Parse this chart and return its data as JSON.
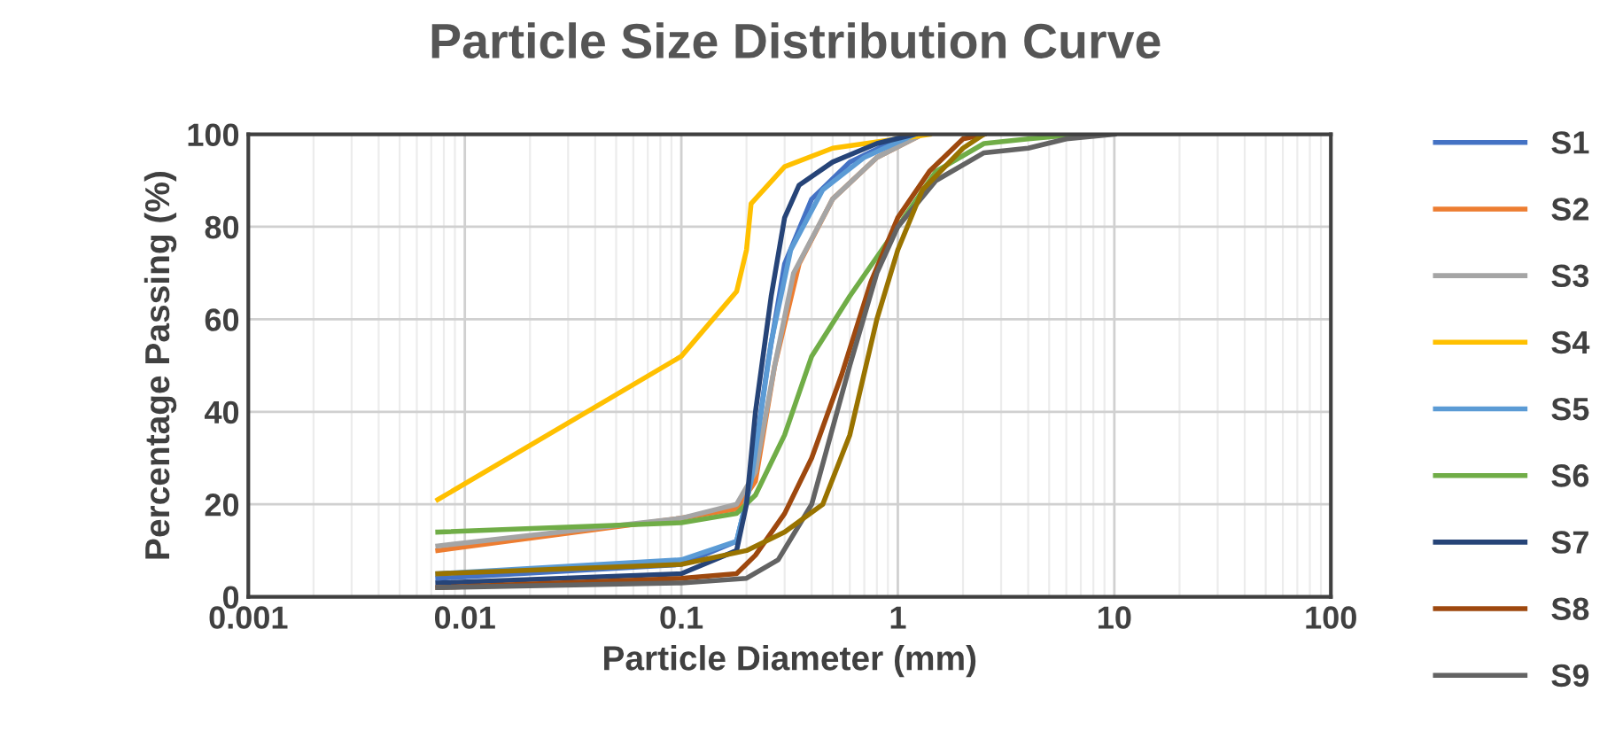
{
  "chart_data": {
    "type": "line",
    "title": "Particle Size Distribution Curve",
    "xlabel": "Particle Diameter (mm)",
    "ylabel": "Percentage Passing (%)",
    "log": "x",
    "xlim": [
      0.001,
      100
    ],
    "xticks": [
      0.001,
      0.01,
      0.1,
      1,
      10,
      100
    ],
    "ylim": [
      0,
      100
    ],
    "yticks": [
      0,
      20,
      40,
      60,
      80,
      100
    ],
    "grid": true,
    "legend": "right",
    "marker": "none",
    "line_style": "solid",
    "series": [
      {
        "name": "S1",
        "color": "#4472c4",
        "x": [
          0.0075,
          0.1,
          0.18,
          0.21,
          0.25,
          0.3,
          0.4,
          0.6,
          1,
          1.3
        ],
        "values": [
          4,
          7,
          12,
          25,
          50,
          72,
          86,
          94,
          99,
          100
        ]
      },
      {
        "name": "S2",
        "color": "#ed7d31",
        "x": [
          0.0075,
          0.1,
          0.18,
          0.22,
          0.27,
          0.35,
          0.5,
          0.8,
          1.3
        ],
        "values": [
          10,
          17,
          19,
          25,
          50,
          72,
          86,
          95,
          100
        ]
      },
      {
        "name": "S3",
        "color": "#a5a5a5",
        "x": [
          0.0075,
          0.1,
          0.18,
          0.22,
          0.27,
          0.33,
          0.5,
          0.8,
          1.3
        ],
        "values": [
          11,
          17,
          20,
          27,
          50,
          70,
          86,
          95,
          100
        ]
      },
      {
        "name": "S4",
        "color": "#ffc000",
        "x": [
          0.0075,
          0.1,
          0.18,
          0.2,
          0.21,
          0.3,
          0.5,
          1,
          1.4
        ],
        "values": [
          21,
          52,
          66,
          75,
          85,
          93,
          97,
          99,
          100
        ]
      },
      {
        "name": "S5",
        "color": "#5b9bd5",
        "x": [
          0.0075,
          0.1,
          0.18,
          0.21,
          0.26,
          0.32,
          0.45,
          0.7,
          1.2
        ],
        "values": [
          5,
          8,
          12,
          25,
          55,
          75,
          88,
          95,
          100
        ]
      },
      {
        "name": "S6",
        "color": "#70ad47",
        "x": [
          0.0075,
          0.1,
          0.18,
          0.22,
          0.3,
          0.4,
          0.6,
          1,
          1.5,
          2.5,
          4,
          7
        ],
        "values": [
          14,
          16,
          18,
          22,
          35,
          52,
          65,
          80,
          92,
          98,
          99,
          100
        ]
      },
      {
        "name": "S7",
        "color": "#264478",
        "x": [
          0.0075,
          0.1,
          0.18,
          0.2,
          0.22,
          0.26,
          0.3,
          0.35,
          0.5,
          0.8,
          1.2
        ],
        "values": [
          3,
          5,
          10,
          20,
          40,
          65,
          82,
          89,
          94,
          98,
          100
        ]
      },
      {
        "name": "S8",
        "color": "#9e480e",
        "x": [
          0.0075,
          0.1,
          0.18,
          0.22,
          0.3,
          0.4,
          0.55,
          0.75,
          1,
          1.4,
          2,
          2.5
        ],
        "values": [
          2,
          4,
          5,
          9,
          18,
          30,
          48,
          68,
          82,
          92,
          99,
          100
        ]
      },
      {
        "name": "S9",
        "color": "#636363",
        "x": [
          0.0075,
          0.1,
          0.2,
          0.28,
          0.4,
          0.6,
          0.8,
          1,
          1.5,
          2.5,
          4,
          6,
          10
        ],
        "values": [
          2,
          3,
          4,
          8,
          20,
          50,
          70,
          80,
          90,
          96,
          97,
          99,
          100
        ]
      },
      {
        "color": "#997300",
        "x": [
          0.0075,
          0.1,
          0.2,
          0.3,
          0.45,
          0.6,
          0.8,
          1,
          1.3,
          2,
          2.5
        ],
        "values": [
          5,
          7,
          10,
          14,
          20,
          35,
          60,
          75,
          88,
          97,
          100
        ]
      }
    ]
  }
}
